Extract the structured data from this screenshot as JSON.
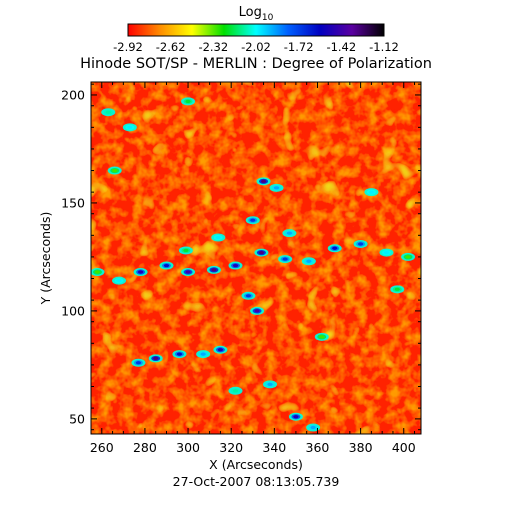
{
  "chart_data": {
    "type": "heatmap",
    "title": "Hinode SOT/SP - MERLIN : Degree of Polarization",
    "subtitle": "27-Oct-2007 08:13:05.739",
    "xlabel": "X (Arcseconds)",
    "ylabel": "Y (Arcseconds)",
    "xlim": [
      255,
      408
    ],
    "ylim": [
      43,
      206
    ],
    "x_ticks": [
      260,
      280,
      300,
      320,
      340,
      360,
      380,
      400
    ],
    "y_ticks": [
      50,
      100,
      150,
      200
    ],
    "grid": false,
    "colorbar": {
      "label_prefix": "Log",
      "label_sub": "10",
      "placement": "top",
      "range": [
        -2.92,
        -1.12
      ],
      "ticks": [
        "-2.92",
        "-2.62",
        "-2.32",
        "-2.02",
        "-1.72",
        "-1.42",
        "-1.12"
      ],
      "colors": [
        "#ff0000",
        "#ff8c00",
        "#ffff00",
        "#00e000",
        "#00ffff",
        "#0060ff",
        "#0000c0",
        "#5a00a0",
        "#000000"
      ]
    },
    "features": [
      {
        "x": 258,
        "y": 118,
        "value": -2.3
      },
      {
        "x": 268,
        "y": 114,
        "value": -2.0
      },
      {
        "x": 278,
        "y": 118,
        "value": -1.5
      },
      {
        "x": 290,
        "y": 121,
        "value": -1.6
      },
      {
        "x": 300,
        "y": 118,
        "value": -1.4
      },
      {
        "x": 312,
        "y": 119,
        "value": -1.3
      },
      {
        "x": 322,
        "y": 121,
        "value": -1.5
      },
      {
        "x": 334,
        "y": 127,
        "value": -1.3
      },
      {
        "x": 345,
        "y": 124,
        "value": -1.7
      },
      {
        "x": 356,
        "y": 123,
        "value": -1.9
      },
      {
        "x": 368,
        "y": 129,
        "value": -1.6
      },
      {
        "x": 380,
        "y": 131,
        "value": -1.7
      },
      {
        "x": 392,
        "y": 127,
        "value": -2.0
      },
      {
        "x": 402,
        "y": 125,
        "value": -2.3
      },
      {
        "x": 330,
        "y": 142,
        "value": -1.7
      },
      {
        "x": 347,
        "y": 136,
        "value": -1.9
      },
      {
        "x": 285,
        "y": 78,
        "value": -1.3
      },
      {
        "x": 277,
        "y": 76,
        "value": -1.7
      },
      {
        "x": 296,
        "y": 80,
        "value": -1.6
      },
      {
        "x": 307,
        "y": 80,
        "value": -1.9
      },
      {
        "x": 315,
        "y": 82,
        "value": -1.5
      },
      {
        "x": 332,
        "y": 100,
        "value": -1.4
      },
      {
        "x": 328,
        "y": 107,
        "value": -1.7
      },
      {
        "x": 335,
        "y": 160,
        "value": -1.3
      },
      {
        "x": 341,
        "y": 157,
        "value": -1.9
      },
      {
        "x": 350,
        "y": 51,
        "value": -1.5
      },
      {
        "x": 358,
        "y": 46,
        "value": -1.9
      },
      {
        "x": 273,
        "y": 185,
        "value": -2.0
      },
      {
        "x": 263,
        "y": 192,
        "value": -2.1
      },
      {
        "x": 322,
        "y": 63,
        "value": -2.1
      },
      {
        "x": 338,
        "y": 66,
        "value": -1.9
      },
      {
        "x": 385,
        "y": 155,
        "value": -2.0
      },
      {
        "x": 397,
        "y": 110,
        "value": -2.2
      },
      {
        "x": 314,
        "y": 134,
        "value": -2.0
      },
      {
        "x": 299,
        "y": 128,
        "value": -2.2
      },
      {
        "x": 300,
        "y": 197,
        "value": -2.2
      },
      {
        "x": 362,
        "y": 88,
        "value": -2.3
      },
      {
        "x": 266,
        "y": 165,
        "value": -2.3
      }
    ]
  }
}
